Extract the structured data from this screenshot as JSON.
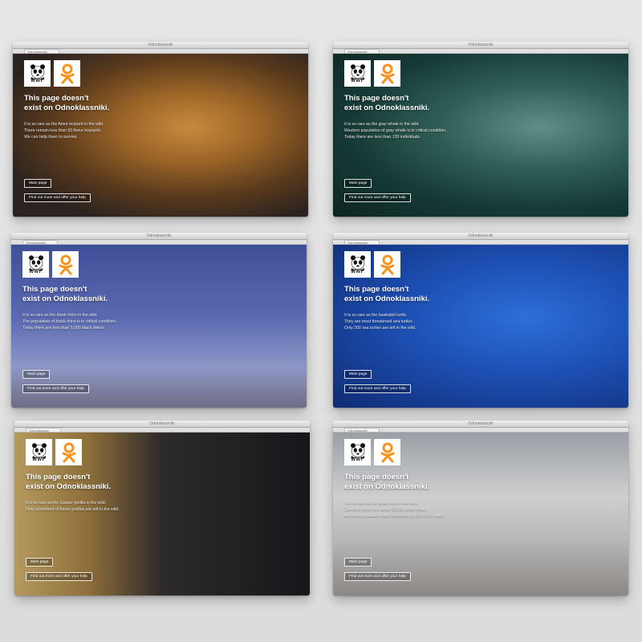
{
  "cards": [
    {
      "id": "leopard",
      "window_title": "Odnoklassniki",
      "tab": "Odnoklassniki",
      "headline_1": "This page doesn't",
      "headline_2": "exist on Odnoklassniki.",
      "line_1": "It is so rare as the Amur leopard in the wild.",
      "line_2": "There remain less than 50 Amur leopards.",
      "line_3": "We can help them to survive.",
      "main_btn": "Main page",
      "help_btn": "Find out more and offer your help"
    },
    {
      "id": "whale",
      "window_title": "Odnoklassniki",
      "tab": "Odnoklassniki",
      "headline_1": "This page doesn't",
      "headline_2": "exist on Odnoklassniki.",
      "line_1": "It is so rare as the gray whale in the wild.",
      "line_2": "Western population of gray whale is in critical condition.",
      "line_3": "Today there are less than 130 individuals.",
      "main_btn": "Main page",
      "help_btn": "Find out more and offer your help"
    },
    {
      "id": "rhino",
      "window_title": "Odnoklassniki",
      "tab": "Odnoklassniki",
      "headline_1": "This page doesn't",
      "headline_2": "exist on Odnoklassniki.",
      "line_1": "It is so rare as the black rhino in the wild.",
      "line_2": "The population of black rhino is in critical condition.",
      "line_3": "Today there are less than 5,000 black rhinos.",
      "main_btn": "Main page",
      "help_btn": "Find out more and offer your help"
    },
    {
      "id": "turtle",
      "window_title": "Odnoklassniki",
      "tab": "Odnoklassniki",
      "headline_1": "This page doesn't",
      "headline_2": "exist on Odnoklassniki.",
      "line_1": "It is so rare as the hawksbill turtle.",
      "line_2": "They are most threatened sea turtles.",
      "line_3": "Only 200 sea turtles are left in the wild.",
      "main_btn": "Main page",
      "help_btn": "Find out more and offer your help"
    },
    {
      "id": "gorilla",
      "window_title": "Odnoklassniki",
      "tab": "Odnoklassniki",
      "headline_1": "This page doesn't",
      "headline_2": "exist on Odnoklassniki.",
      "line_1": "It is so rare as the Grauer gorilla in the wild.",
      "line_2": "Only a hundred of these gorillas are left in the wild.",
      "line_3": "",
      "main_btn": "Main page",
      "help_btn": "Find out more and offer your help"
    },
    {
      "id": "polarbear",
      "window_title": "Odnoklassniki",
      "tab": "Odnoklassniki",
      "headline_1": "This page doesn't",
      "headline_2": "exist on Odnoklassniki.",
      "line_1": "It is so rare as the polar bear in the wild.",
      "line_2": "Currently there are about 25,000 polar bears,",
      "line_3": "but their population might decrease by 2/3 in 50 years.",
      "main_btn": "Main page",
      "help_btn": "Find out more and offer your help"
    }
  ],
  "brand": {
    "wwf_label": "WWF",
    "ok_color": "#f7931e",
    "panda_color": "#111111"
  }
}
